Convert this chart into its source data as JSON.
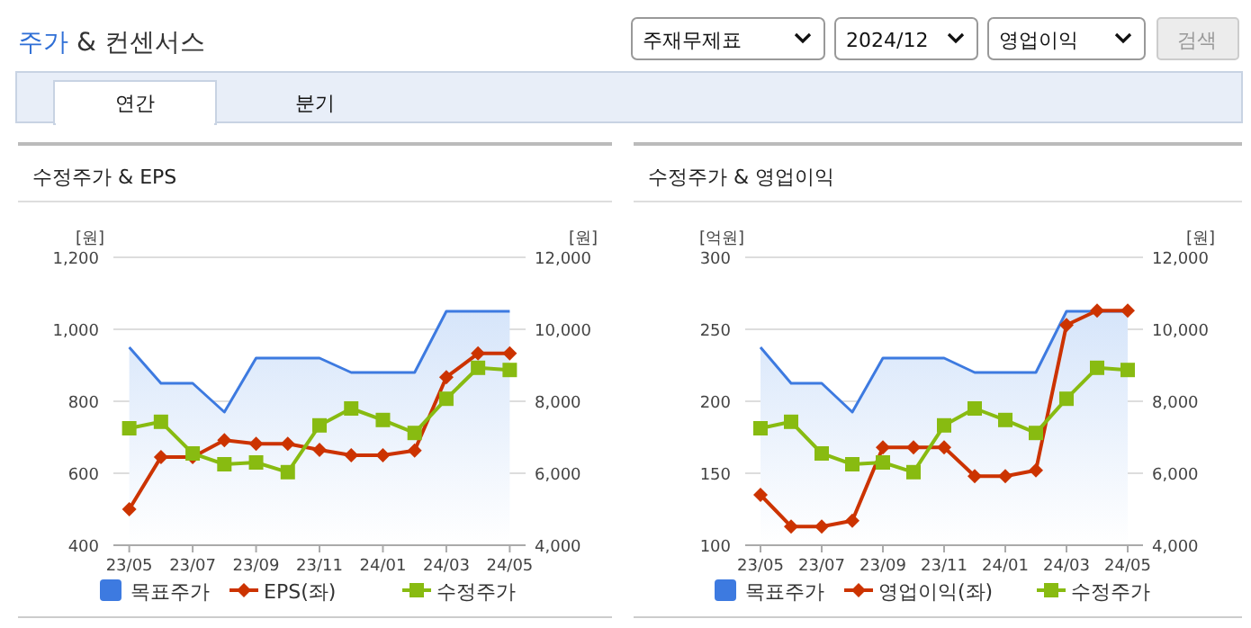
{
  "chart_data": [
    {
      "type": "line",
      "title": "수정주가 & EPS",
      "annotations": [
        "주가",
        "& 컨센서스",
        "주재무제표",
        "2024/12",
        "영업이익",
        "검색",
        "연간",
        "분기"
      ],
      "categories": [
        "23/05",
        null,
        "23/07",
        null,
        "23/09",
        null,
        "23/11",
        null,
        "24/01",
        null,
        "24/03",
        null,
        "24/05"
      ],
      "ylabel": "[원]",
      "y2label": "[원]",
      "ylim": [
        400,
        1200
      ],
      "yticks": [
        400,
        600,
        800,
        {
          "value": 1000,
          "label": "1,000"
        },
        {
          "value": 1200,
          "label": "1,200"
        }
      ],
      "y2lim": [
        4000,
        12000
      ],
      "y2ticks": [
        {
          "value": 4000,
          "label": "4,000"
        },
        {
          "value": 6000,
          "label": "6,000"
        },
        {
          "value": 8000,
          "label": "8,000"
        },
        {
          "value": 10000,
          "label": "10,000"
        },
        {
          "value": 12000,
          "label": "12,000"
        }
      ],
      "grid": "y",
      "legend": "bottom",
      "series": [
        {
          "name": "목표주가",
          "type": "area",
          "axis": "y2",
          "color": "#3d7ae0",
          "values": [
            9500,
            8500,
            8500,
            7700,
            9200,
            9200,
            9200,
            8800,
            8800,
            8800,
            10500,
            10500,
            10500
          ]
        },
        {
          "name": "EPS(좌)",
          "marker": "diamond",
          "color": "#cc3300",
          "values": [
            500,
            645,
            645,
            692,
            682,
            682,
            665,
            650,
            650,
            663,
            867,
            933,
            933
          ]
        },
        {
          "name": "수정주가",
          "axis": "y2",
          "marker": "square",
          "color": "#88bb11",
          "values": [
            7250,
            7430,
            6550,
            6250,
            6300,
            6030,
            7330,
            7800,
            7480,
            7120,
            8070,
            8930,
            8870
          ]
        }
      ]
    },
    {
      "type": "line",
      "title": "수정주가 & 영업이익",
      "categories": [
        "23/05",
        null,
        "23/07",
        null,
        "23/09",
        null,
        "23/11",
        null,
        "24/01",
        null,
        "24/03",
        null,
        "24/05"
      ],
      "ylabel": "[억원]",
      "y2label": "[원]",
      "ylim": [
        100,
        300
      ],
      "yticks": [
        100,
        150,
        200,
        250,
        300
      ],
      "y2lim": [
        4000,
        12000
      ],
      "y2ticks": [
        {
          "value": 4000,
          "label": "4,000"
        },
        {
          "value": 6000,
          "label": "6,000"
        },
        {
          "value": 8000,
          "label": "8,000"
        },
        {
          "value": 10000,
          "label": "10,000"
        },
        {
          "value": 12000,
          "label": "12,000"
        }
      ],
      "grid": "y",
      "legend": "bottom",
      "series": [
        {
          "name": "목표주가",
          "type": "area",
          "axis": "y2",
          "color": "#3d7ae0",
          "values": [
            9500,
            8500,
            8500,
            7700,
            9200,
            9200,
            9200,
            8800,
            8800,
            8800,
            10500,
            10500,
            10500
          ]
        },
        {
          "name": "영업이익(좌)",
          "marker": "diamond",
          "color": "#cc3300",
          "values": [
            135,
            113,
            113,
            117,
            168,
            168,
            168,
            148,
            148,
            152,
            253,
            263,
            263
          ]
        },
        {
          "name": "수정주가",
          "axis": "y2",
          "marker": "square",
          "color": "#88bb11",
          "values": [
            7250,
            7430,
            6550,
            6250,
            6300,
            6030,
            7330,
            7800,
            7480,
            7120,
            8070,
            8930,
            8870
          ]
        }
      ]
    }
  ]
}
